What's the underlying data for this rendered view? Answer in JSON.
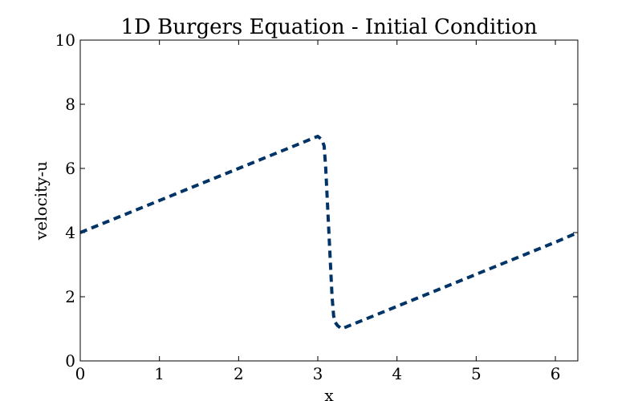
{
  "chart_data": {
    "type": "line",
    "title": "1D Burgers Equation - Initial Condition",
    "xlabel": "x",
    "ylabel": "velocity-u",
    "xlim": [
      0,
      6.283185
    ],
    "ylim": [
      0,
      10
    ],
    "x_ticks": [
      "0",
      "1",
      "2",
      "3",
      "4",
      "5",
      "6"
    ],
    "y_ticks": [
      "0",
      "2",
      "4",
      "6",
      "8",
      "10"
    ],
    "grid": false,
    "line_style": "dashed",
    "line_color": "#003366",
    "series": [
      {
        "x": [
          0,
          0.5,
          1,
          1.5,
          2,
          2.5,
          2.8,
          2.95,
          3.0,
          3.05,
          3.08,
          3.1,
          3.13,
          3.16,
          3.18,
          3.2,
          3.22,
          3.25,
          3.3,
          3.5,
          4.0,
          4.5,
          5.0,
          5.5,
          6.0,
          6.283185
        ],
        "y": [
          4.0,
          4.5,
          5.0,
          5.5,
          6.0,
          6.5,
          6.8,
          6.95,
          7.0,
          6.9,
          6.7,
          6.0,
          4.5,
          3.0,
          2.0,
          1.4,
          1.2,
          1.1,
          1.0,
          1.2,
          1.7,
          2.2,
          2.7,
          3.2,
          3.7,
          4.0
        ]
      }
    ]
  }
}
